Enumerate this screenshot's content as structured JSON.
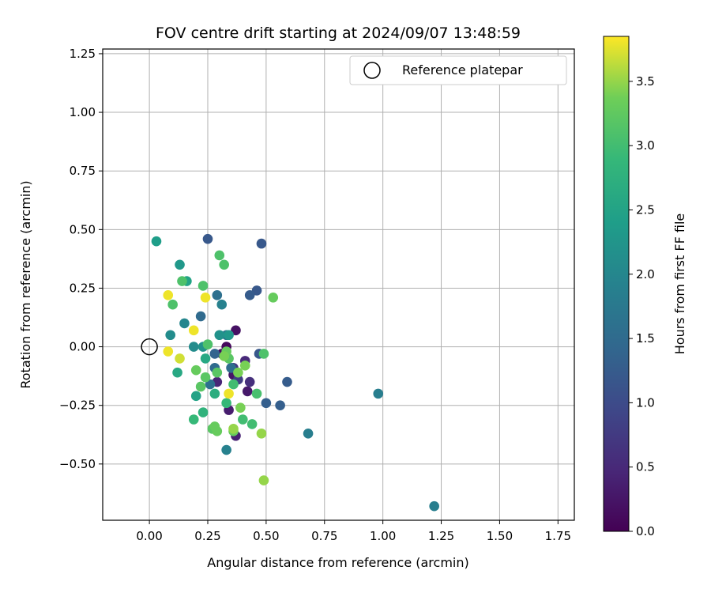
{
  "chart_data": {
    "type": "scatter",
    "title": "FOV centre drift starting at 2024/09/07 13:48:59",
    "xlabel": "Angular distance from reference (arcmin)",
    "ylabel": "Rotation from reference (arcmin)",
    "xlim": [
      -0.2,
      1.82
    ],
    "ylim": [
      -0.74,
      1.27
    ],
    "xticks": [
      0.0,
      0.25,
      0.5,
      0.75,
      1.0,
      1.25,
      1.5,
      1.75
    ],
    "xtick_labels": [
      "0.00",
      "0.25",
      "0.50",
      "0.75",
      "1.00",
      "1.25",
      "1.50",
      "1.75"
    ],
    "yticks": [
      -0.5,
      -0.25,
      0.0,
      0.25,
      0.5,
      0.75,
      1.0,
      1.25
    ],
    "ytick_labels": [
      "−0.50",
      "−0.25",
      "0.00",
      "0.25",
      "0.50",
      "0.75",
      "1.00",
      "1.25"
    ],
    "grid": true,
    "legend": {
      "location": "upper right",
      "label": "Reference platepar"
    },
    "reference_point": {
      "x": 0.0,
      "y": 0.0,
      "marker": "open circle"
    },
    "colorbar": {
      "label": "Hours from first FF file",
      "colormap": "viridis",
      "range": [
        0.0,
        3.85
      ],
      "ticks": [
        0.0,
        0.5,
        1.0,
        1.5,
        2.0,
        2.5,
        3.0,
        3.5
      ],
      "tick_labels": [
        "0.0",
        "0.5",
        "1.0",
        "1.5",
        "2.0",
        "2.5",
        "3.0",
        "3.5"
      ]
    },
    "points": [
      {
        "x": 0.33,
        "y": 0.0,
        "c": 0.1
      },
      {
        "x": 0.31,
        "y": -0.03,
        "c": 0.15
      },
      {
        "x": 0.37,
        "y": 0.07,
        "c": 0.2
      },
      {
        "x": 0.36,
        "y": -0.12,
        "c": 0.25
      },
      {
        "x": 0.42,
        "y": -0.19,
        "c": 0.3
      },
      {
        "x": 0.34,
        "y": -0.27,
        "c": 0.35
      },
      {
        "x": 0.37,
        "y": -0.38,
        "c": 0.4
      },
      {
        "x": 0.29,
        "y": -0.15,
        "c": 0.45
      },
      {
        "x": 0.41,
        "y": -0.06,
        "c": 0.5
      },
      {
        "x": 0.43,
        "y": -0.15,
        "c": 0.6
      },
      {
        "x": 0.36,
        "y": -0.09,
        "c": 0.7
      },
      {
        "x": 0.38,
        "y": -0.14,
        "c": 0.8
      },
      {
        "x": 0.25,
        "y": 0.46,
        "c": 1.2
      },
      {
        "x": 0.48,
        "y": 0.44,
        "c": 1.2
      },
      {
        "x": 0.46,
        "y": 0.24,
        "c": 1.2
      },
      {
        "x": 0.43,
        "y": 0.22,
        "c": 1.25
      },
      {
        "x": 0.47,
        "y": -0.03,
        "c": 1.2
      },
      {
        "x": 0.59,
        "y": -0.15,
        "c": 1.25
      },
      {
        "x": 0.5,
        "y": -0.24,
        "c": 1.3
      },
      {
        "x": 0.56,
        "y": -0.25,
        "c": 1.3
      },
      {
        "x": 0.28,
        "y": -0.03,
        "c": 1.4
      },
      {
        "x": 0.28,
        "y": -0.09,
        "c": 1.5
      },
      {
        "x": 0.22,
        "y": 0.13,
        "c": 1.5
      },
      {
        "x": 0.29,
        "y": 0.22,
        "c": 1.6
      },
      {
        "x": 0.26,
        "y": -0.16,
        "c": 1.6
      },
      {
        "x": 0.35,
        "y": -0.09,
        "c": 1.55
      },
      {
        "x": 0.33,
        "y": 0.05,
        "c": 1.7
      },
      {
        "x": 0.68,
        "y": -0.37,
        "c": 1.85
      },
      {
        "x": 0.98,
        "y": -0.2,
        "c": 1.85
      },
      {
        "x": 1.22,
        "y": -0.68,
        "c": 1.85
      },
      {
        "x": 0.31,
        "y": 0.18,
        "c": 1.9
      },
      {
        "x": 0.33,
        "y": -0.44,
        "c": 1.9
      },
      {
        "x": 0.15,
        "y": 0.1,
        "c": 2.0
      },
      {
        "x": 0.09,
        "y": 0.05,
        "c": 2.1
      },
      {
        "x": 0.19,
        "y": 0.0,
        "c": 2.1
      },
      {
        "x": 0.23,
        "y": 0.0,
        "c": 2.2
      },
      {
        "x": 0.3,
        "y": 0.05,
        "c": 2.2
      },
      {
        "x": 0.34,
        "y": 0.05,
        "c": 2.3
      },
      {
        "x": 0.13,
        "y": 0.35,
        "c": 2.3
      },
      {
        "x": 0.03,
        "y": 0.45,
        "c": 2.4
      },
      {
        "x": 0.16,
        "y": 0.28,
        "c": 2.5
      },
      {
        "x": 0.2,
        "y": -0.21,
        "c": 2.5
      },
      {
        "x": 0.24,
        "y": -0.05,
        "c": 2.6
      },
      {
        "x": 0.12,
        "y": -0.11,
        "c": 2.6
      },
      {
        "x": 0.28,
        "y": -0.2,
        "c": 2.7
      },
      {
        "x": 0.23,
        "y": -0.28,
        "c": 2.8
      },
      {
        "x": 0.19,
        "y": -0.31,
        "c": 2.9
      },
      {
        "x": 0.33,
        "y": -0.24,
        "c": 2.9
      },
      {
        "x": 0.36,
        "y": -0.16,
        "c": 3.0
      },
      {
        "x": 0.44,
        "y": -0.33,
        "c": 3.0
      },
      {
        "x": 0.4,
        "y": -0.31,
        "c": 3.0
      },
      {
        "x": 0.46,
        "y": -0.2,
        "c": 3.05
      },
      {
        "x": 0.49,
        "y": -0.03,
        "c": 3.1
      },
      {
        "x": 0.3,
        "y": 0.39,
        "c": 3.1
      },
      {
        "x": 0.32,
        "y": 0.35,
        "c": 3.1
      },
      {
        "x": 0.1,
        "y": 0.18,
        "c": 3.1
      },
      {
        "x": 0.14,
        "y": 0.28,
        "c": 3.1
      },
      {
        "x": 0.23,
        "y": 0.26,
        "c": 3.1
      },
      {
        "x": 0.25,
        "y": 0.01,
        "c": 3.1
      },
      {
        "x": 0.24,
        "y": -0.13,
        "c": 3.2
      },
      {
        "x": 0.22,
        "y": -0.17,
        "c": 3.2
      },
      {
        "x": 0.29,
        "y": -0.11,
        "c": 3.2
      },
      {
        "x": 0.34,
        "y": -0.05,
        "c": 3.2
      },
      {
        "x": 0.27,
        "y": -0.35,
        "c": 3.2
      },
      {
        "x": 0.29,
        "y": -0.36,
        "c": 3.3
      },
      {
        "x": 0.36,
        "y": -0.36,
        "c": 3.3
      },
      {
        "x": 0.39,
        "y": -0.26,
        "c": 3.4
      },
      {
        "x": 0.41,
        "y": -0.08,
        "c": 3.4
      },
      {
        "x": 0.38,
        "y": -0.11,
        "c": 3.4
      },
      {
        "x": 0.33,
        "y": -0.02,
        "c": 3.3
      },
      {
        "x": 0.28,
        "y": -0.34,
        "c": 3.3
      },
      {
        "x": 0.32,
        "y": -0.04,
        "c": 3.4
      },
      {
        "x": 0.2,
        "y": -0.1,
        "c": 3.3
      },
      {
        "x": 0.48,
        "y": -0.37,
        "c": 3.5
      },
      {
        "x": 0.49,
        "y": -0.57,
        "c": 3.5
      },
      {
        "x": 0.53,
        "y": 0.21,
        "c": 3.3
      },
      {
        "x": 0.13,
        "y": -0.05,
        "c": 3.7
      },
      {
        "x": 0.08,
        "y": -0.02,
        "c": 3.8
      },
      {
        "x": 0.08,
        "y": 0.22,
        "c": 3.8
      },
      {
        "x": 0.19,
        "y": 0.07,
        "c": 3.8
      },
      {
        "x": 0.24,
        "y": 0.21,
        "c": 3.8
      },
      {
        "x": 0.34,
        "y": -0.2,
        "c": 3.8
      },
      {
        "x": 0.36,
        "y": -0.35,
        "c": 3.5
      }
    ]
  }
}
